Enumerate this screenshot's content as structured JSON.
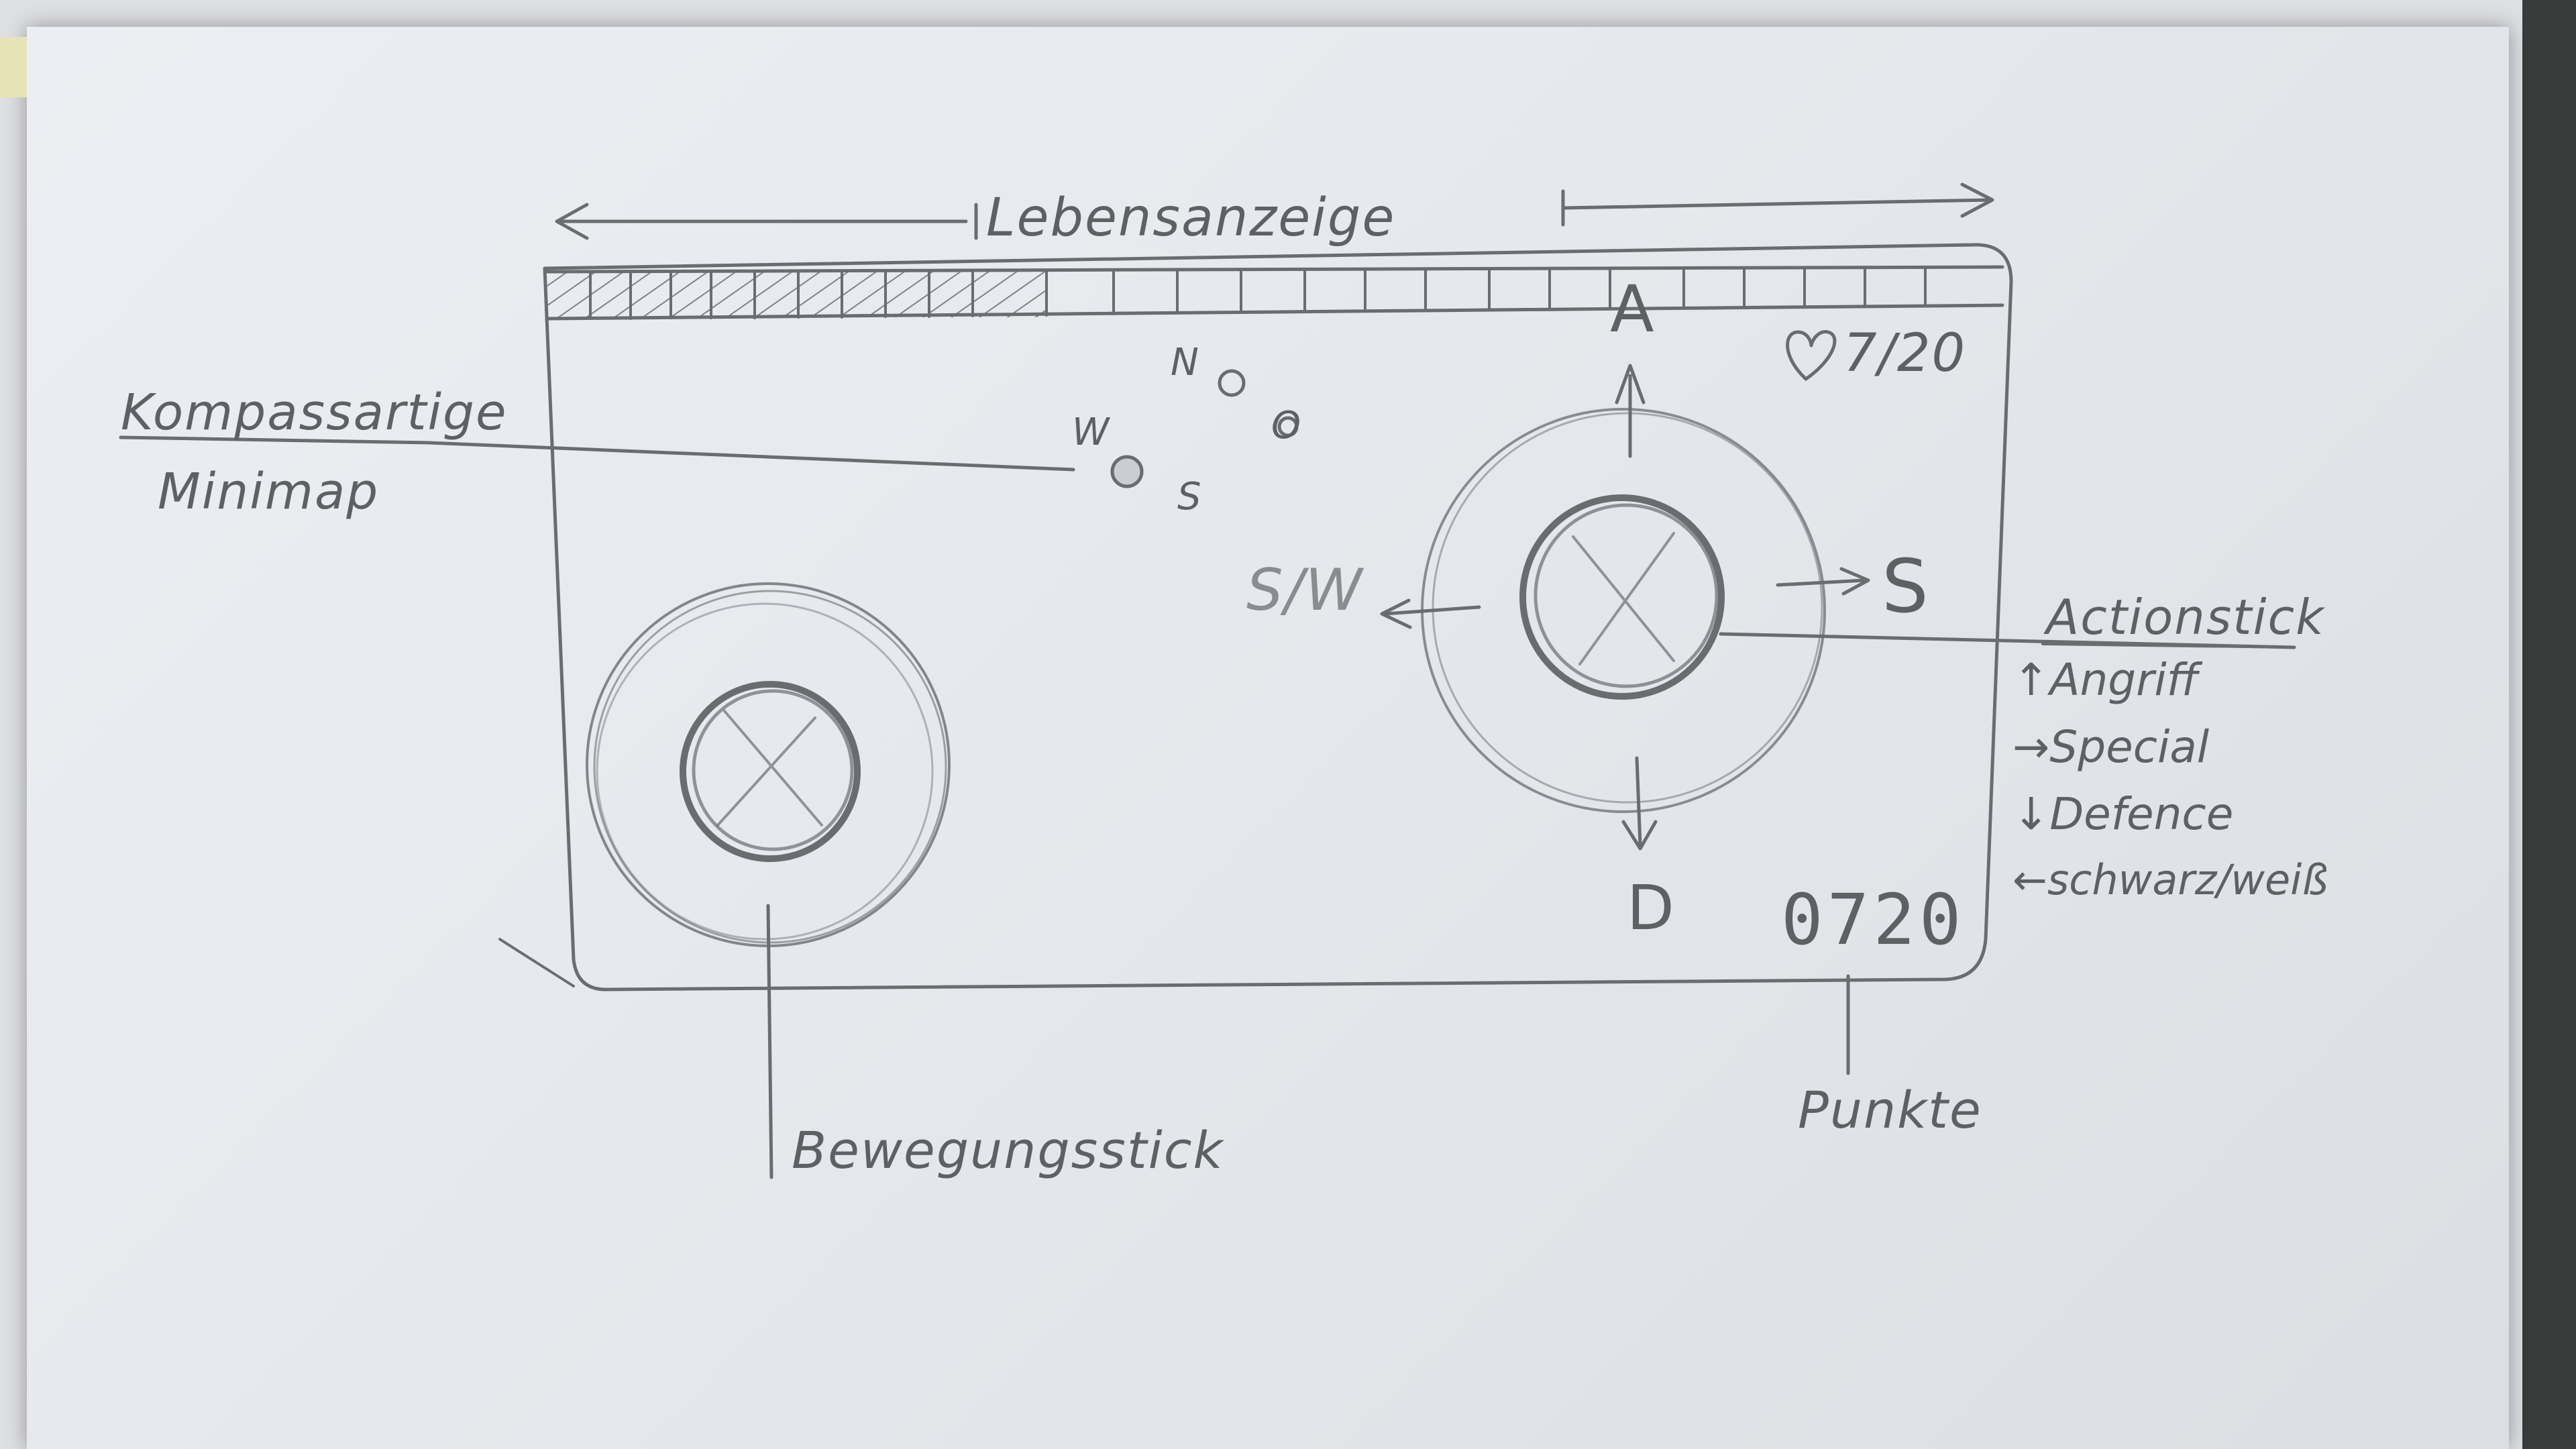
{
  "labels": {
    "health_bar": "Lebensanzeige",
    "minimap_line1": "Kompassartige",
    "minimap_line2": "Minimap",
    "action_stick": "Actionstick",
    "movement_stick": "Bewegungsstick",
    "points_label": "Punkte"
  },
  "hud": {
    "health_value": "7/20",
    "score": "0720"
  },
  "compass": {
    "north": "N",
    "east": "O",
    "west": "W",
    "south": "S"
  },
  "action_directions": {
    "up": "A",
    "right": "S",
    "left": "S/W",
    "down": "D"
  },
  "action_legend": [
    {
      "arrow": "↑",
      "text": "Angriff"
    },
    {
      "arrow": "→",
      "text": "Special"
    },
    {
      "arrow": "↓",
      "text": "Defence"
    },
    {
      "arrow": "←",
      "text": "schwarz/weiß"
    }
  ],
  "icons": {
    "heart": "heart-icon"
  },
  "colors": {
    "pencil": "#5e6064",
    "paper": "#e9ebef",
    "background": "#3a3c3b"
  }
}
